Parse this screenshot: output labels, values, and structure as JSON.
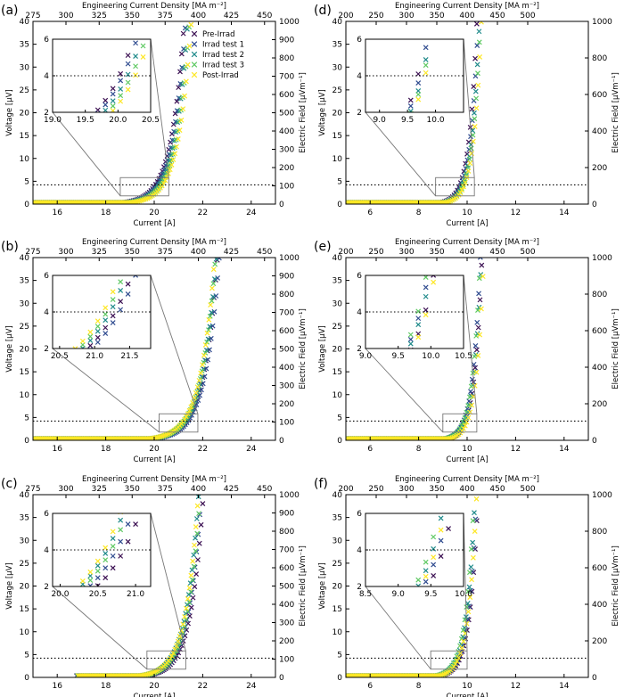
{
  "figure": {
    "legend": [
      "Pre-Irrad",
      "Irrad test 1",
      "Irrad test 2",
      "Irrad test 3",
      "Post-Irrad"
    ],
    "series_colors": [
      "#3b0f52",
      "#2f4b8f",
      "#1f8a8a",
      "#5ec962",
      "#fde725"
    ],
    "criterion_uV": 4.2,
    "axis_titles": {
      "x": "Current [A]",
      "x_top": "Engineering Current Density [MA m⁻²]",
      "y_left": "Voltage [μV]",
      "y_right": "Electric Field [μVm⁻¹]"
    }
  },
  "chart_data": [
    {
      "panel": "(a)",
      "type": "scatter",
      "xlim": [
        15,
        25
      ],
      "ylim": [
        0,
        40
      ],
      "xticks": [
        16,
        18,
        20,
        22,
        24
      ],
      "yticks": [
        0,
        5,
        10,
        15,
        20,
        25,
        30,
        35,
        40
      ],
      "top_ticks_A": [
        15.0,
        16.36,
        17.73,
        19.09,
        20.45,
        21.82,
        23.18,
        24.55
      ],
      "top_labels": [
        "275",
        "300",
        "325",
        "350",
        "375",
        "400",
        "425",
        "450"
      ],
      "right_ticks_uV": [
        0,
        4,
        8,
        12,
        16,
        20,
        24,
        28,
        32,
        36,
        40
      ],
      "right_labels": [
        "0",
        "100",
        "200",
        "300",
        "400",
        "500",
        "600",
        "700",
        "800",
        "900",
        "1000"
      ],
      "box": {
        "x": [
          18.6,
          20.6
        ],
        "y": [
          1.8,
          5.8
        ]
      },
      "inset": {
        "xlim": [
          19.0,
          20.5
        ],
        "ylim": [
          2,
          6
        ],
        "xticks": [
          "19.0",
          "19.5",
          "20.0",
          "20.5"
        ],
        "yticks": [
          "2",
          "4",
          "6"
        ]
      },
      "series": [
        {
          "name": "Pre-Irrad",
          "I0": 20.05,
          "k": 1.9,
          "x0": 15.0,
          "shift": 0.0
        },
        {
          "name": "Irrad test 1",
          "I0": 20.05,
          "k": 1.9,
          "x0": 15.0,
          "shift": 0.05
        },
        {
          "name": "Irrad test 2",
          "I0": 20.05,
          "k": 1.9,
          "x0": 15.0,
          "shift": 0.12
        },
        {
          "name": "Irrad test 3",
          "I0": 20.05,
          "k": 1.9,
          "x0": 15.0,
          "shift": 0.18
        },
        {
          "name": "Post-Irrad",
          "I0": 20.05,
          "k": 1.9,
          "x0": 15.0,
          "shift": 0.24
        }
      ]
    },
    {
      "panel": "(d)",
      "type": "scatter",
      "xlim": [
        5,
        15
      ],
      "ylim": [
        0,
        40
      ],
      "xticks": [
        6,
        8,
        10,
        12,
        14
      ],
      "yticks": [
        0,
        5,
        10,
        15,
        20,
        25,
        30,
        35,
        40
      ],
      "top_ticks_A": [
        5.0,
        6.25,
        7.5,
        8.75,
        10.0,
        11.25,
        12.5
      ],
      "top_labels": [
        "200",
        "250",
        "300",
        "350",
        "400",
        "450",
        "500"
      ],
      "right_ticks_uV": [
        0,
        8,
        16,
        24,
        32,
        40
      ],
      "right_labels": [
        "0",
        "200",
        "400",
        "600",
        "800",
        "1000"
      ],
      "box": {
        "x": [
          8.7,
          10.3
        ],
        "y": [
          1.8,
          5.8
        ]
      },
      "inset": {
        "xlim": [
          8.75,
          10.5
        ],
        "ylim": [
          2,
          6
        ],
        "xticks": [
          "9.0",
          "9.5",
          "10.0"
        ],
        "yticks": [
          "2",
          "4",
          "6"
        ]
      },
      "series": [
        {
          "name": "Pre-Irrad",
          "I0": 9.7,
          "k": 3.2,
          "x0": 5.0,
          "shift": 0.0
        },
        {
          "name": "Irrad test 1",
          "I0": 9.7,
          "k": 3.2,
          "x0": 5.0,
          "shift": 0.04
        },
        {
          "name": "Irrad test 2",
          "I0": 9.7,
          "k": 3.2,
          "x0": 5.0,
          "shift": 0.08
        },
        {
          "name": "Irrad test 3",
          "I0": 9.7,
          "k": 3.2,
          "x0": 5.0,
          "shift": 0.1
        },
        {
          "name": "Post-Irrad",
          "I0": 9.7,
          "k": 3.2,
          "x0": 5.0,
          "shift": 0.13
        }
      ]
    },
    {
      "panel": "(b)",
      "type": "scatter",
      "xlim": [
        15,
        25
      ],
      "ylim": [
        0,
        40
      ],
      "xticks": [
        16,
        18,
        20,
        22,
        24
      ],
      "yticks": [
        0,
        5,
        10,
        15,
        20,
        25,
        30,
        35,
        40
      ],
      "top_ticks_A": [
        15.0,
        16.36,
        17.73,
        19.09,
        20.45,
        21.82,
        23.18,
        24.55
      ],
      "top_labels": [
        "275",
        "300",
        "325",
        "350",
        "375",
        "400",
        "425",
        "450"
      ],
      "right_ticks_uV": [
        0,
        4,
        8,
        12,
        16,
        20,
        24,
        28,
        32,
        36,
        40
      ],
      "right_labels": [
        "0",
        "100",
        "200",
        "300",
        "400",
        "500",
        "600",
        "700",
        "800",
        "900",
        "1000"
      ],
      "box": {
        "x": [
          20.2,
          21.8
        ],
        "y": [
          1.8,
          5.8
        ]
      },
      "inset": {
        "xlim": [
          20.4,
          21.8
        ],
        "ylim": [
          2,
          6
        ],
        "xticks": [
          "20.5",
          "21.0",
          "21.5"
        ],
        "yticks": [
          "2",
          "4",
          "6"
        ]
      },
      "series": [
        {
          "name": "Pre-Irrad",
          "I0": 21.2,
          "k": 1.75,
          "x0": 15.0,
          "shift": 0.12
        },
        {
          "name": "Irrad test 1",
          "I0": 21.2,
          "k": 1.75,
          "x0": 15.0,
          "shift": 0.18
        },
        {
          "name": "Irrad test 2",
          "I0": 21.2,
          "k": 1.75,
          "x0": 15.0,
          "shift": 0.05
        },
        {
          "name": "Irrad test 3",
          "I0": 21.2,
          "k": 1.75,
          "x0": 15.0,
          "shift": 0.0
        },
        {
          "name": "Post-Irrad",
          "I0": 21.2,
          "k": 1.75,
          "x0": 15.0,
          "shift": -0.05
        }
      ]
    },
    {
      "panel": "(e)",
      "type": "scatter",
      "xlim": [
        5,
        15
      ],
      "ylim": [
        0,
        40
      ],
      "xticks": [
        6,
        8,
        10,
        12,
        14
      ],
      "yticks": [
        0,
        5,
        10,
        15,
        20,
        25,
        30,
        35,
        40
      ],
      "top_ticks_A": [
        5.0,
        6.25,
        7.5,
        8.75,
        10.0,
        11.25,
        12.5
      ],
      "top_labels": [
        "200",
        "250",
        "300",
        "350",
        "400",
        "450",
        "500"
      ],
      "right_ticks_uV": [
        0,
        8,
        16,
        24,
        32,
        40
      ],
      "right_labels": [
        "0",
        "200",
        "400",
        "600",
        "800",
        "1000"
      ],
      "box": {
        "x": [
          9.0,
          10.4
        ],
        "y": [
          1.8,
          5.8
        ]
      },
      "inset": {
        "xlim": [
          9.0,
          10.5
        ],
        "ylim": [
          2,
          6
        ],
        "xticks": [
          "9.0",
          "9.5",
          "10.0",
          "10.5"
        ],
        "yticks": [
          "2",
          "4",
          "6"
        ]
      },
      "series": [
        {
          "name": "Pre-Irrad",
          "I0": 9.85,
          "k": 3.3,
          "x0": 5.0,
          "shift": 0.08
        },
        {
          "name": "Irrad test 1",
          "I0": 9.85,
          "k": 3.3,
          "x0": 5.0,
          "shift": 0.0
        },
        {
          "name": "Irrad test 2",
          "I0": 9.85,
          "k": 3.3,
          "x0": 5.0,
          "shift": 0.03
        },
        {
          "name": "Irrad test 3",
          "I0": 9.85,
          "k": 3.3,
          "x0": 5.0,
          "shift": -0.03
        },
        {
          "name": "Post-Irrad",
          "I0": 9.85,
          "k": 3.3,
          "x0": 5.0,
          "shift": 0.1
        }
      ]
    },
    {
      "panel": "(c)",
      "type": "scatter",
      "xlim": [
        15,
        25
      ],
      "ylim": [
        0,
        40
      ],
      "xticks": [
        16,
        18,
        20,
        22,
        24
      ],
      "yticks": [
        0,
        5,
        10,
        15,
        20,
        25,
        30,
        35,
        40
      ],
      "top_ticks_A": [
        15.0,
        16.36,
        17.73,
        19.09,
        20.45,
        21.82,
        23.18,
        24.55
      ],
      "top_labels": [
        "275",
        "300",
        "325",
        "350",
        "375",
        "400",
        "425",
        "450"
      ],
      "right_ticks_uV": [
        0,
        4,
        8,
        12,
        16,
        20,
        24,
        28,
        32,
        36,
        40
      ],
      "right_labels": [
        "0",
        "100",
        "200",
        "300",
        "400",
        "500",
        "600",
        "700",
        "800",
        "900",
        "1000"
      ],
      "box": {
        "x": [
          19.7,
          21.3
        ],
        "y": [
          1.8,
          5.8
        ]
      },
      "inset": {
        "xlim": [
          19.9,
          21.2
        ],
        "ylim": [
          2,
          6
        ],
        "xticks": [
          "20.0",
          "20.5",
          "21.0"
        ],
        "yticks": [
          "2",
          "4",
          "6"
        ]
      },
      "series": [
        {
          "name": "Pre-Irrad",
          "I0": 20.65,
          "k": 1.95,
          "x0": 16.8,
          "shift": 0.22
        },
        {
          "name": "Irrad test 1",
          "I0": 20.65,
          "k": 1.95,
          "x0": 16.8,
          "shift": 0.12
        },
        {
          "name": "Irrad test 2",
          "I0": 20.65,
          "k": 1.95,
          "x0": 16.8,
          "shift": 0.0
        },
        {
          "name": "Irrad test 3",
          "I0": 20.65,
          "k": 1.95,
          "x0": 16.8,
          "shift": 0.05
        },
        {
          "name": "Post-Irrad",
          "I0": 20.65,
          "k": 1.95,
          "x0": 16.8,
          "shift": -0.04
        }
      ]
    },
    {
      "panel": "(f)",
      "type": "scatter",
      "xlim": [
        5,
        15
      ],
      "ylim": [
        0,
        40
      ],
      "xticks": [
        6,
        8,
        10,
        12,
        14
      ],
      "yticks": [
        0,
        5,
        10,
        15,
        20,
        25,
        30,
        35,
        40
      ],
      "top_ticks_A": [
        5.0,
        6.25,
        7.5,
        8.75,
        10.0,
        11.25,
        12.5
      ],
      "top_labels": [
        "200",
        "250",
        "300",
        "350",
        "400",
        "450",
        "500"
      ],
      "right_ticks_uV": [
        0,
        8,
        16,
        24,
        32,
        40
      ],
      "right_labels": [
        "0",
        "200",
        "400",
        "600",
        "800",
        "1000"
      ],
      "box": {
        "x": [
          8.5,
          10.0
        ],
        "y": [
          1.8,
          5.8
        ]
      },
      "inset": {
        "xlim": [
          8.5,
          10.0
        ],
        "ylim": [
          2,
          6
        ],
        "xticks": [
          "8.5",
          "9.0",
          "9.5",
          "10.0"
        ],
        "yticks": [
          "2",
          "4",
          "6"
        ]
      },
      "series": [
        {
          "name": "Pre-Irrad",
          "I0": 9.55,
          "k": 3.0,
          "x0": 5.0,
          "shift": 0.15
        },
        {
          "name": "Irrad test 1",
          "I0": 9.55,
          "k": 3.0,
          "x0": 5.0,
          "shift": 0.08
        },
        {
          "name": "Irrad test 2",
          "I0": 9.55,
          "k": 3.0,
          "x0": 5.0,
          "shift": 0.0
        },
        {
          "name": "Irrad test 3",
          "I0": 9.55,
          "k": 3.0,
          "x0": 5.0,
          "shift": -0.05
        },
        {
          "name": "Post-Irrad",
          "I0": 9.55,
          "k": 3.0,
          "x0": 5.0,
          "shift": 0.04
        }
      ]
    }
  ]
}
